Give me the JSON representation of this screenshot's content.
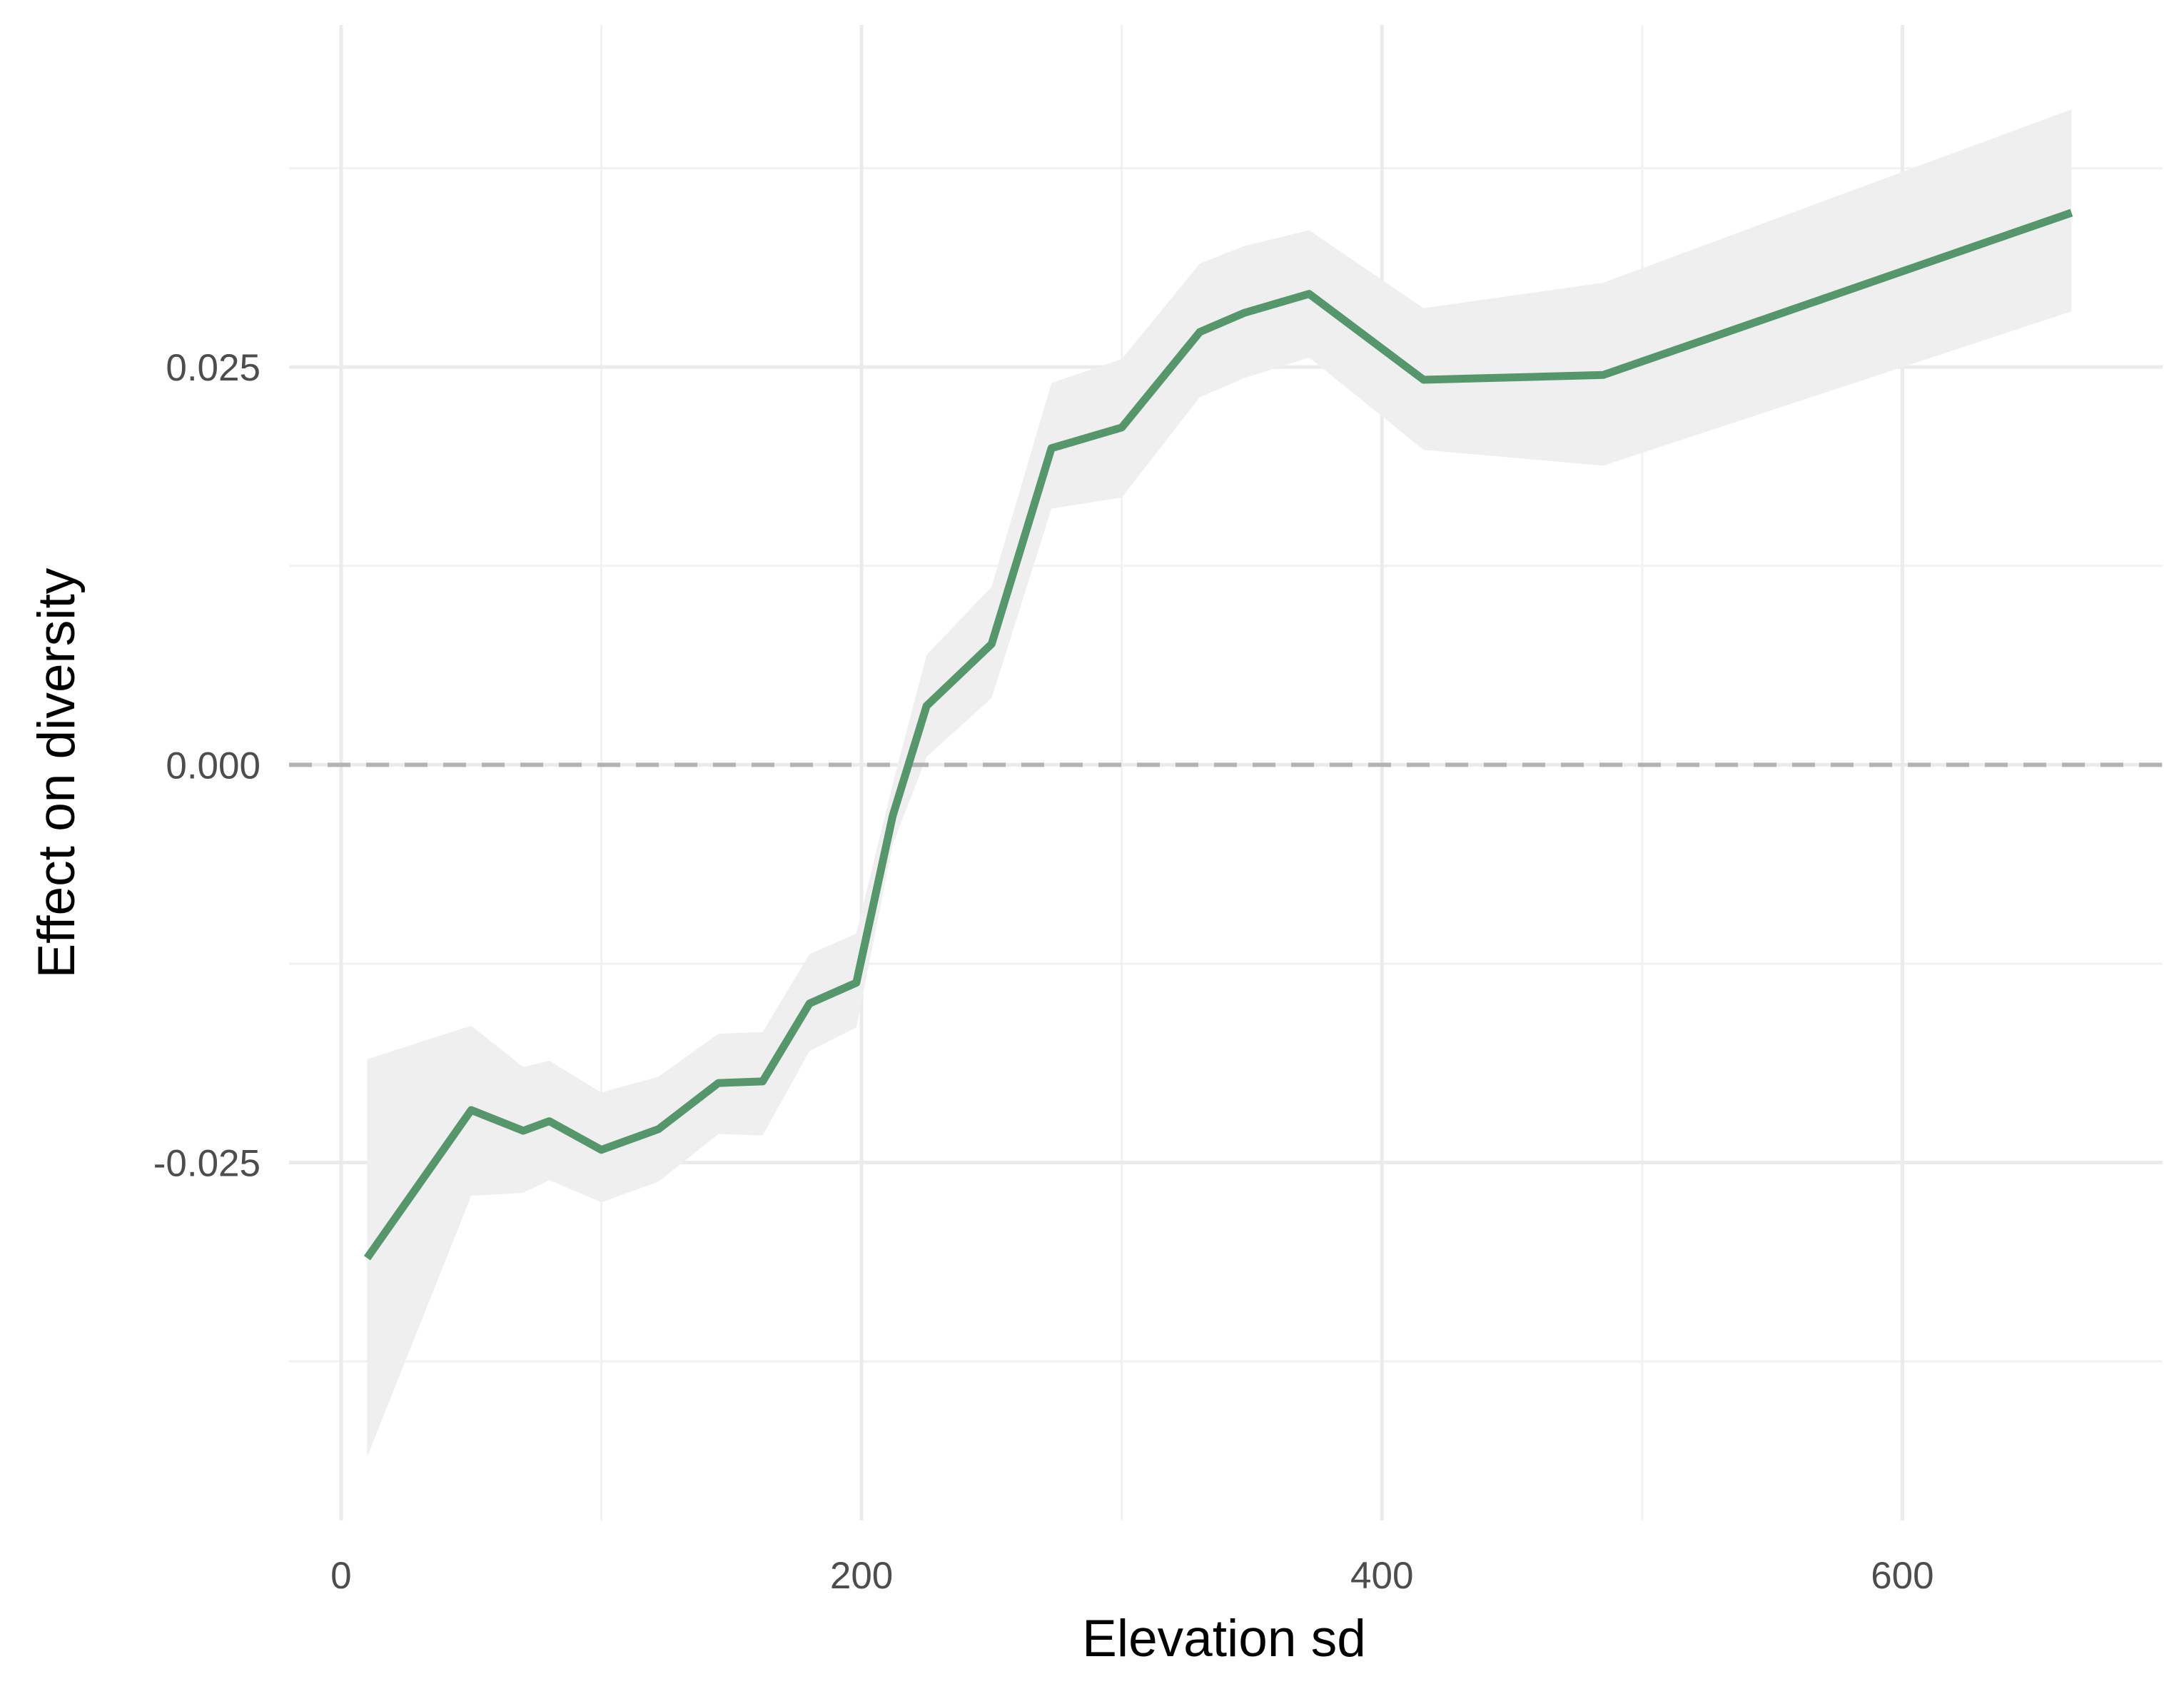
{
  "chart_data": {
    "type": "line",
    "title": "",
    "xlabel": "Elevation sd",
    "ylabel": "Effect on diversity",
    "xlim": [
      -20,
      700
    ],
    "ylim": [
      -0.0475,
      0.0465
    ],
    "x_ticks": [
      0,
      200,
      400,
      600
    ],
    "x_tick_labels": [
      "0",
      "200",
      "400",
      "600"
    ],
    "y_ticks": [
      -0.025,
      0.0,
      0.025
    ],
    "y_tick_labels": [
      "-0.025",
      "0.000",
      "0.025"
    ],
    "x_minor_ticks": [
      100,
      300,
      500
    ],
    "y_minor_ticks": [
      -0.0375,
      -0.0125,
      0.0125,
      0.0375
    ],
    "grid": true,
    "reference_line": {
      "y": 0.0,
      "style": "dashed",
      "color": "#b3b3b3"
    },
    "line_color": "#55966a",
    "band_color": "#efefef",
    "series": [
      {
        "x": [
          10,
          50,
          70,
          80,
          100,
          122,
          145,
          162,
          180,
          198,
          212,
          225,
          250,
          273,
          300,
          330,
          347,
          372,
          416,
          485,
          665
        ],
        "y": [
          -0.031,
          -0.0217,
          -0.023,
          -0.0224,
          -0.0242,
          -0.0229,
          -0.02,
          -0.0199,
          -0.015,
          -0.0137,
          -0.0032,
          0.0037,
          0.0076,
          0.0199,
          0.0212,
          0.0272,
          0.0284,
          0.0296,
          0.0242,
          0.0245,
          0.0347
        ],
        "lower": [
          -0.0435,
          -0.0271,
          -0.0269,
          -0.0261,
          -0.0275,
          -0.0262,
          -0.0232,
          -0.0233,
          -0.018,
          -0.0165,
          -0.005,
          0.0005,
          0.0042,
          0.0161,
          0.0168,
          0.0231,
          0.0243,
          0.0256,
          0.0198,
          0.0188,
          0.0285
        ],
        "upper": [
          -0.0185,
          -0.0164,
          -0.019,
          -0.0186,
          -0.0206,
          -0.0196,
          -0.0169,
          -0.0168,
          -0.0119,
          -0.0106,
          -0.0012,
          0.0069,
          0.0112,
          0.024,
          0.0255,
          0.0315,
          0.0326,
          0.0336,
          0.0287,
          0.0303,
          0.0412
        ]
      }
    ]
  }
}
